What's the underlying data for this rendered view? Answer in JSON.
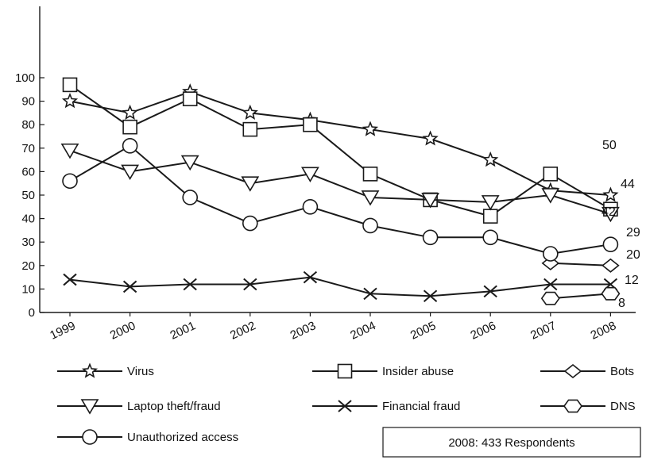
{
  "chart_data": {
    "type": "line",
    "x": [
      "1999",
      "2000",
      "2001",
      "2002",
      "2003",
      "2004",
      "2005",
      "2006",
      "2007",
      "2008"
    ],
    "ylim": [
      0,
      100
    ],
    "yticks": [
      0,
      10,
      20,
      30,
      40,
      50,
      60,
      70,
      80,
      90,
      100
    ],
    "grid": false,
    "legend_position": "bottom",
    "series": [
      {
        "name": "Virus",
        "marker": "star",
        "values": [
          90,
          85,
          94,
          85,
          82,
          78,
          74,
          65,
          52,
          50
        ]
      },
      {
        "name": "Insider abuse",
        "marker": "square",
        "values": [
          97,
          79,
          91,
          78,
          80,
          59,
          48,
          41,
          59,
          44
        ]
      },
      {
        "name": "Bots",
        "marker": "diamond",
        "values": [
          null,
          null,
          null,
          null,
          null,
          null,
          null,
          null,
          21,
          20
        ]
      },
      {
        "name": "Laptop theft/fraud",
        "marker": "triangle-down",
        "values": [
          69,
          60,
          64,
          55,
          59,
          49,
          48,
          47,
          50,
          42
        ]
      },
      {
        "name": "Financial fraud",
        "marker": "x",
        "values": [
          14,
          11,
          12,
          12,
          15,
          8,
          7,
          9,
          12,
          12
        ]
      },
      {
        "name": "DNS",
        "marker": "hexagon",
        "values": [
          null,
          null,
          null,
          null,
          null,
          null,
          null,
          null,
          6,
          8
        ]
      },
      {
        "name": "Unauthorized access",
        "marker": "circle",
        "values": [
          56,
          71,
          49,
          38,
          45,
          37,
          32,
          32,
          25,
          29
        ]
      }
    ],
    "data_labels": [
      "50",
      "44",
      "42",
      "29",
      "20",
      "12",
      "8"
    ],
    "annotation": "2008: 433 Respondents"
  }
}
